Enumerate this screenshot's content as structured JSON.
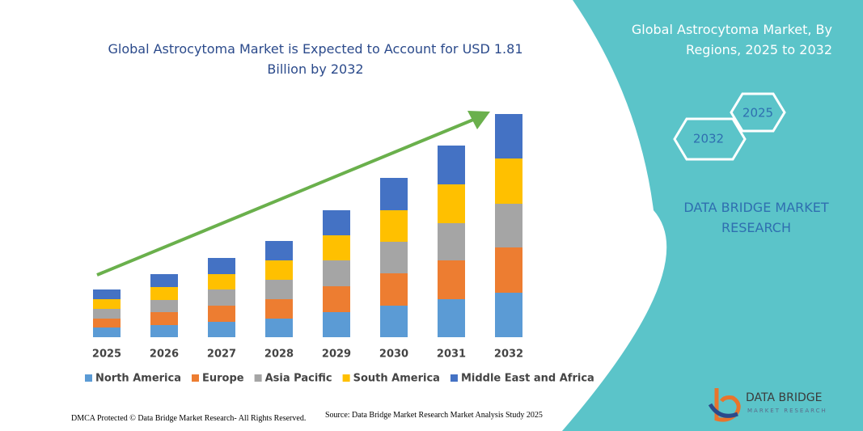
{
  "chart_data": {
    "type": "bar",
    "stacked": true,
    "title": "Global Astrocytoma Market is Expected to Account for USD 1.81 Billion by 2032",
    "categories": [
      "2025",
      "2026",
      "2027",
      "2028",
      "2029",
      "2030",
      "2031",
      "2032"
    ],
    "series": [
      {
        "name": "North America",
        "color": "#5b9bd5",
        "values": [
          12,
          15,
          19,
          23,
          31,
          39,
          47,
          55
        ]
      },
      {
        "name": "Europe",
        "color": "#ed7d31",
        "values": [
          11,
          16,
          20,
          24,
          32,
          40,
          48,
          56
        ]
      },
      {
        "name": "Asia Pacific",
        "color": "#a5a5a5",
        "values": [
          12,
          15,
          20,
          24,
          32,
          39,
          46,
          54
        ]
      },
      {
        "name": "South America",
        "color": "#ffc000",
        "values": [
          12,
          16,
          19,
          24,
          31,
          39,
          48,
          56
        ]
      },
      {
        "name": "Middle East and Africa",
        "color": "#4472c4",
        "values": [
          12,
          16,
          20,
          24,
          31,
          40,
          48,
          55
        ]
      }
    ],
    "ylim": [
      0,
      280
    ]
  },
  "panel": {
    "title": "Global Astrocytoma Market, By Regions, 2025 to 2032",
    "hex_start": "2025",
    "hex_end": "2032",
    "brand": "DATA BRIDGE MARKET RESEARCH"
  },
  "footer": {
    "dmca": "DMCA Protected © Data Bridge Market Research- All Rights Reserved.",
    "source": "Source: Data Bridge Market Research  Market Analysis Study 2025"
  },
  "logo": {
    "name": "DATA BRIDGE",
    "tagline": "MARKET RESEARCH"
  }
}
